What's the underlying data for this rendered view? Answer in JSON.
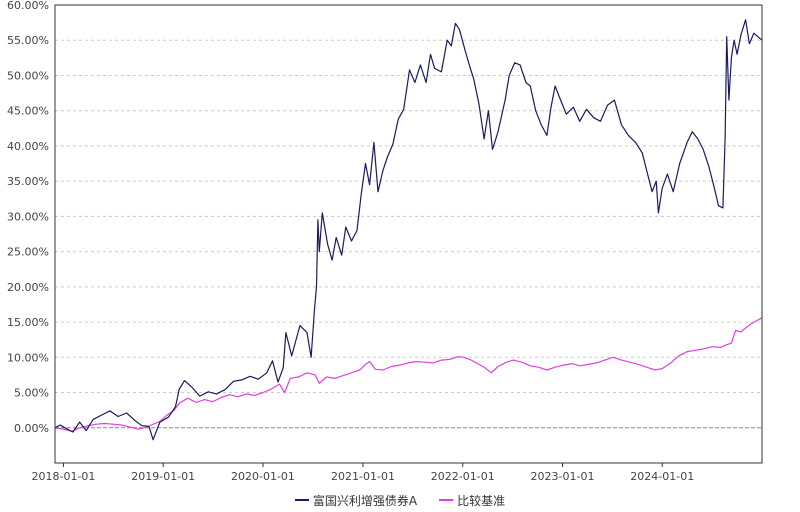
{
  "chart_data": {
    "type": "line",
    "x_ticks": [
      "2018-01-01",
      "2019-01-01",
      "2020-01-01",
      "2021-01-01",
      "2022-01-01",
      "2023-01-01",
      "2024-01-01"
    ],
    "y_ticks": [
      "60.00%",
      "55.00%",
      "50.00%",
      "45.00%",
      "40.00%",
      "35.00%",
      "30.00%",
      "25.00%",
      "20.00%",
      "15.00%",
      "10.00%",
      "5.00%",
      "0.00%"
    ],
    "ylim": [
      -5,
      60
    ],
    "xlim": [
      "2017-12-01",
      "2024-12-31"
    ],
    "grid": true,
    "legend_position": "bottom-center",
    "series": [
      {
        "name": "富国兴利增强债券A",
        "color": "#1a1a5e",
        "points": [
          [
            "2017-12-01",
            0.0
          ],
          [
            "2017-12-20",
            0.4
          ],
          [
            "2018-01-15",
            -0.2
          ],
          [
            "2018-02-05",
            -0.6
          ],
          [
            "2018-03-01",
            0.8
          ],
          [
            "2018-03-25",
            -0.4
          ],
          [
            "2018-04-20",
            1.2
          ],
          [
            "2018-05-20",
            1.8
          ],
          [
            "2018-06-20",
            2.4
          ],
          [
            "2018-07-20",
            1.6
          ],
          [
            "2018-08-20",
            2.1
          ],
          [
            "2018-09-20",
            1.0
          ],
          [
            "2018-10-15",
            0.3
          ],
          [
            "2018-11-10",
            0.2
          ],
          [
            "2018-11-25",
            -1.7
          ],
          [
            "2018-12-20",
            0.8
          ],
          [
            "2019-01-20",
            1.5
          ],
          [
            "2019-02-15",
            3.0
          ],
          [
            "2019-03-01",
            5.5
          ],
          [
            "2019-03-20",
            6.7
          ],
          [
            "2019-04-15",
            5.8
          ],
          [
            "2019-05-15",
            4.5
          ],
          [
            "2019-06-15",
            5.1
          ],
          [
            "2019-07-15",
            4.8
          ],
          [
            "2019-08-15",
            5.4
          ],
          [
            "2019-09-15",
            6.6
          ],
          [
            "2019-10-15",
            6.8
          ],
          [
            "2019-11-15",
            7.3
          ],
          [
            "2019-12-15",
            6.9
          ],
          [
            "2020-01-15",
            7.8
          ],
          [
            "2020-02-05",
            9.5
          ],
          [
            "2020-02-25",
            6.5
          ],
          [
            "2020-03-15",
            8.5
          ],
          [
            "2020-03-25",
            13.5
          ],
          [
            "2020-04-15",
            10.2
          ],
          [
            "2020-05-15",
            14.5
          ],
          [
            "2020-06-10",
            13.5
          ],
          [
            "2020-06-25",
            10.0
          ],
          [
            "2020-07-08",
            17.0
          ],
          [
            "2020-07-15",
            20.0
          ],
          [
            "2020-07-20",
            29.5
          ],
          [
            "2020-07-25",
            25.0
          ],
          [
            "2020-08-05",
            30.5
          ],
          [
            "2020-08-25",
            26.0
          ],
          [
            "2020-09-10",
            23.8
          ],
          [
            "2020-09-25",
            27.0
          ],
          [
            "2020-10-15",
            24.5
          ],
          [
            "2020-10-30",
            28.5
          ],
          [
            "2020-11-20",
            26.5
          ],
          [
            "2020-12-10",
            28.0
          ],
          [
            "2020-12-25",
            33.0
          ],
          [
            "2021-01-10",
            37.5
          ],
          [
            "2021-01-25",
            34.5
          ],
          [
            "2021-02-10",
            40.5
          ],
          [
            "2021-02-25",
            33.5
          ],
          [
            "2021-03-15",
            36.5
          ],
          [
            "2021-04-01",
            38.5
          ],
          [
            "2021-04-20",
            40.2
          ],
          [
            "2021-05-10",
            43.8
          ],
          [
            "2021-05-30",
            45.2
          ],
          [
            "2021-06-20",
            50.8
          ],
          [
            "2021-07-10",
            49.0
          ],
          [
            "2021-07-30",
            51.5
          ],
          [
            "2021-08-20",
            49.0
          ],
          [
            "2021-09-05",
            53.0
          ],
          [
            "2021-09-20",
            51.0
          ],
          [
            "2021-10-15",
            50.5
          ],
          [
            "2021-11-05",
            55.0
          ],
          [
            "2021-11-20",
            54.2
          ],
          [
            "2021-12-05",
            57.4
          ],
          [
            "2021-12-20",
            56.5
          ],
          [
            "2022-01-10",
            53.5
          ],
          [
            "2022-01-25",
            51.5
          ],
          [
            "2022-02-10",
            49.5
          ],
          [
            "2022-03-01",
            46.0
          ],
          [
            "2022-03-20",
            41.0
          ],
          [
            "2022-04-05",
            45.0
          ],
          [
            "2022-04-20",
            39.5
          ],
          [
            "2022-05-10",
            42.0
          ],
          [
            "2022-06-05",
            46.5
          ],
          [
            "2022-06-20",
            50.0
          ],
          [
            "2022-07-10",
            51.8
          ],
          [
            "2022-07-30",
            51.5
          ],
          [
            "2022-08-20",
            49.0
          ],
          [
            "2022-09-05",
            48.5
          ],
          [
            "2022-09-25",
            45.0
          ],
          [
            "2022-10-15",
            43.0
          ],
          [
            "2022-11-05",
            41.5
          ],
          [
            "2022-11-20",
            45.5
          ],
          [
            "2022-12-05",
            48.5
          ],
          [
            "2022-12-25",
            46.5
          ],
          [
            "2023-01-15",
            44.5
          ],
          [
            "2023-02-10",
            45.5
          ],
          [
            "2023-03-05",
            43.5
          ],
          [
            "2023-03-30",
            45.2
          ],
          [
            "2023-04-25",
            44.0
          ],
          [
            "2023-05-20",
            43.5
          ],
          [
            "2023-06-15",
            45.8
          ],
          [
            "2023-07-10",
            46.5
          ],
          [
            "2023-08-05",
            43.0
          ],
          [
            "2023-08-30",
            41.5
          ],
          [
            "2023-09-25",
            40.5
          ],
          [
            "2023-10-20",
            39.0
          ],
          [
            "2023-11-05",
            36.5
          ],
          [
            "2023-11-25",
            33.5
          ],
          [
            "2023-12-10",
            35.0
          ],
          [
            "2023-12-18",
            30.5
          ],
          [
            "2024-01-01",
            34.0
          ],
          [
            "2024-01-20",
            36.0
          ],
          [
            "2024-02-10",
            33.5
          ],
          [
            "2024-03-05",
            37.5
          ],
          [
            "2024-04-01",
            40.5
          ],
          [
            "2024-04-20",
            42.0
          ],
          [
            "2024-05-10",
            41.0
          ],
          [
            "2024-05-30",
            39.5
          ],
          [
            "2024-06-20",
            37.0
          ],
          [
            "2024-07-10",
            34.0
          ],
          [
            "2024-07-25",
            31.5
          ],
          [
            "2024-08-10",
            31.2
          ],
          [
            "2024-08-18",
            41.0
          ],
          [
            "2024-08-24",
            55.5
          ],
          [
            "2024-09-01",
            46.5
          ],
          [
            "2024-09-10",
            52.5
          ],
          [
            "2024-09-20",
            55.0
          ],
          [
            "2024-10-01",
            53.0
          ],
          [
            "2024-10-15",
            55.8
          ],
          [
            "2024-11-01",
            57.9
          ],
          [
            "2024-11-15",
            54.5
          ],
          [
            "2024-12-01",
            56.0
          ],
          [
            "2024-12-31",
            55.0
          ]
        ]
      },
      {
        "name": "比较基准",
        "color": "#e040e0",
        "points": [
          [
            "2017-12-01",
            0.0
          ],
          [
            "2018-01-01",
            -0.2
          ],
          [
            "2018-02-01",
            -0.5
          ],
          [
            "2018-03-01",
            0.0
          ],
          [
            "2018-04-01",
            0.3
          ],
          [
            "2018-05-01",
            0.5
          ],
          [
            "2018-06-01",
            0.6
          ],
          [
            "2018-07-01",
            0.5
          ],
          [
            "2018-08-01",
            0.4
          ],
          [
            "2018-09-01",
            0.1
          ],
          [
            "2018-10-01",
            -0.2
          ],
          [
            "2018-11-01",
            0.1
          ],
          [
            "2018-12-01",
            0.6
          ],
          [
            "2018-12-20",
            0.9
          ],
          [
            "2019-01-15",
            1.8
          ],
          [
            "2019-02-10",
            2.5
          ],
          [
            "2019-03-01",
            3.5
          ],
          [
            "2019-04-01",
            4.2
          ],
          [
            "2019-05-01",
            3.6
          ],
          [
            "2019-06-01",
            4.0
          ],
          [
            "2019-07-01",
            3.7
          ],
          [
            "2019-08-01",
            4.3
          ],
          [
            "2019-09-01",
            4.7
          ],
          [
            "2019-10-01",
            4.4
          ],
          [
            "2019-11-01",
            4.8
          ],
          [
            "2019-12-01",
            4.6
          ],
          [
            "2020-01-01",
            5.0
          ],
          [
            "2020-02-01",
            5.5
          ],
          [
            "2020-03-01",
            6.2
          ],
          [
            "2020-03-20",
            5.0
          ],
          [
            "2020-04-10",
            7.0
          ],
          [
            "2020-05-10",
            7.2
          ],
          [
            "2020-06-10",
            7.8
          ],
          [
            "2020-07-10",
            7.5
          ],
          [
            "2020-07-25",
            6.3
          ],
          [
            "2020-08-20",
            7.2
          ],
          [
            "2020-09-20",
            7.0
          ],
          [
            "2020-10-20",
            7.4
          ],
          [
            "2020-11-20",
            7.8
          ],
          [
            "2020-12-20",
            8.2
          ],
          [
            "2021-01-10",
            9.0
          ],
          [
            "2021-01-25",
            9.4
          ],
          [
            "2021-02-15",
            8.3
          ],
          [
            "2021-03-15",
            8.2
          ],
          [
            "2021-04-15",
            8.7
          ],
          [
            "2021-05-15",
            8.9
          ],
          [
            "2021-06-15",
            9.2
          ],
          [
            "2021-07-15",
            9.4
          ],
          [
            "2021-08-15",
            9.3
          ],
          [
            "2021-09-15",
            9.2
          ],
          [
            "2021-10-15",
            9.6
          ],
          [
            "2021-11-15",
            9.7
          ],
          [
            "2021-12-15",
            10.1
          ],
          [
            "2022-01-05",
            10.0
          ],
          [
            "2022-02-01",
            9.6
          ],
          [
            "2022-03-01",
            9.0
          ],
          [
            "2022-03-20",
            8.6
          ],
          [
            "2022-04-15",
            7.8
          ],
          [
            "2022-05-10",
            8.7
          ],
          [
            "2022-06-10",
            9.3
          ],
          [
            "2022-07-05",
            9.6
          ],
          [
            "2022-08-05",
            9.3
          ],
          [
            "2022-09-05",
            8.8
          ],
          [
            "2022-10-05",
            8.6
          ],
          [
            "2022-11-05",
            8.2
          ],
          [
            "2022-12-05",
            8.6
          ],
          [
            "2023-01-05",
            8.9
          ],
          [
            "2023-02-05",
            9.1
          ],
          [
            "2023-03-05",
            8.8
          ],
          [
            "2023-04-05",
            9.0
          ],
          [
            "2023-05-05",
            9.2
          ],
          [
            "2023-06-05",
            9.6
          ],
          [
            "2023-07-05",
            10.0
          ],
          [
            "2023-08-05",
            9.6
          ],
          [
            "2023-09-05",
            9.3
          ],
          [
            "2023-10-05",
            9.0
          ],
          [
            "2023-11-05",
            8.6
          ],
          [
            "2023-12-05",
            8.2
          ],
          [
            "2024-01-01",
            8.4
          ],
          [
            "2024-02-01",
            9.2
          ],
          [
            "2024-03-01",
            10.2
          ],
          [
            "2024-04-01",
            10.8
          ],
          [
            "2024-05-01",
            11.0
          ],
          [
            "2024-06-01",
            11.2
          ],
          [
            "2024-07-01",
            11.5
          ],
          [
            "2024-08-01",
            11.4
          ],
          [
            "2024-08-25",
            11.8
          ],
          [
            "2024-09-10",
            12.0
          ],
          [
            "2024-09-25",
            13.8
          ],
          [
            "2024-10-15",
            13.6
          ],
          [
            "2024-11-05",
            14.3
          ],
          [
            "2024-12-01",
            15.0
          ],
          [
            "2024-12-31",
            15.6
          ]
        ]
      }
    ]
  }
}
